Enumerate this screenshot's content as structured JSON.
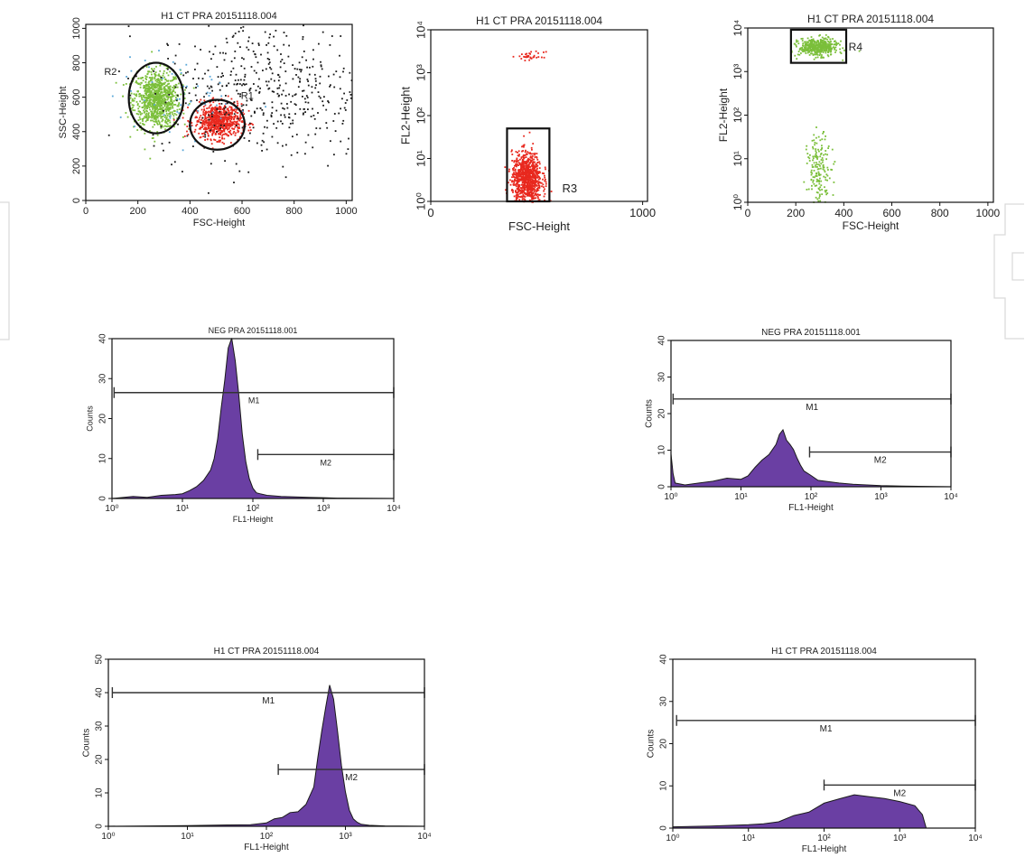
{
  "chart_data": [
    {
      "id": "dot-ssc-fsc",
      "type": "scatter",
      "title": "H1 CT PRA 20151118.004",
      "xlabel": "FSC-Height",
      "ylabel": "SSC-Height",
      "xlim": [
        0,
        1023
      ],
      "ylim": [
        0,
        1023
      ],
      "xticks": [
        "0",
        "200",
        "400",
        "600",
        "800",
        "1000"
      ],
      "yticks": [
        "0",
        "200",
        "400",
        "600",
        "800",
        "1000"
      ],
      "series": [
        {
          "color": "#7bbf3a",
          "cluster": {
            "cx": 270,
            "cy": 590,
            "sx": 45,
            "sy": 85,
            "n": 900
          }
        },
        {
          "color": "#e8281e",
          "cluster": {
            "cx": 505,
            "cy": 465,
            "sx": 45,
            "sy": 50,
            "n": 700
          }
        },
        {
          "color": "#1a1a1a",
          "cluster": {
            "cx": 700,
            "cy": 650,
            "sx": 220,
            "sy": 200,
            "n": 500
          }
        },
        {
          "color": "#5aa7d8",
          "cluster": {
            "cx": 350,
            "cy": 600,
            "sx": 120,
            "sy": 120,
            "n": 60
          }
        }
      ],
      "gates": [
        {
          "label": "R2",
          "type": "ellipse",
          "cx": 270,
          "cy": 595,
          "rx": 105,
          "ry": 205,
          "label_x": 95,
          "label_y": 730
        },
        {
          "label": "R1",
          "type": "ellipse",
          "cx": 505,
          "cy": 440,
          "rx": 105,
          "ry": 145,
          "label_x": 620,
          "label_y": 590
        }
      ]
    },
    {
      "id": "dot-fl2-fsc-red",
      "type": "scatter",
      "title": "H1 CT PRA 20151118.004",
      "xlabel": "FSC-Height",
      "ylabel": "FL2-Height",
      "xlim": [
        0,
        1023
      ],
      "ylog": [
        0,
        4
      ],
      "xticks": [
        "0",
        "1000"
      ],
      "yticks": [
        "10⁰",
        "10¹",
        "10²",
        "10³",
        "10⁴"
      ],
      "series": [
        {
          "color": "#e8281e",
          "cluster": {
            "cx": 450,
            "cy_log": 0.55,
            "sx": 35,
            "sy_log": 0.3,
            "n": 900
          }
        },
        {
          "color": "#e8281e",
          "cluster": {
            "cx": 470,
            "cy_log": 3.4,
            "sx": 30,
            "sy_log": 0.05,
            "n": 35
          }
        }
      ],
      "gates": [
        {
          "label": "R3",
          "type": "rect",
          "x0": 360,
          "x1": 560,
          "y0_log": 0,
          "y1_log": 1.7,
          "label_x": 620,
          "label_y_log": 0.28
        }
      ]
    },
    {
      "id": "dot-fl2-fsc-green",
      "type": "scatter",
      "title": "H1 CT PRA 20151118.004",
      "xlabel": "FSC-Height",
      "ylabel": "FL2-Height",
      "xlim": [
        0,
        1023
      ],
      "ylog": [
        0,
        4
      ],
      "xticks": [
        "0",
        "200",
        "400",
        "600",
        "800",
        "1000"
      ],
      "yticks": [
        "10⁰",
        "10¹",
        "10²",
        "10³",
        "10⁴"
      ],
      "series": [
        {
          "color": "#7bbf3a",
          "cluster": {
            "cx": 290,
            "cy_log": 3.58,
            "sx": 40,
            "sy_log": 0.1,
            "n": 450
          }
        },
        {
          "color": "#7bbf3a",
          "cluster": {
            "cx": 295,
            "cy_log": 0.75,
            "sx": 25,
            "sy_log": 0.4,
            "n": 170
          }
        }
      ],
      "gates": [
        {
          "label": "R4",
          "type": "rect",
          "x0": 180,
          "x1": 410,
          "y0_log": 3.2,
          "y1_log": 3.96,
          "label_x": 420,
          "label_y_log": 3.55
        }
      ]
    },
    {
      "id": "hist-neg-1",
      "type": "area",
      "title": "NEG PRA 20151118.001",
      "xlabel": "FL1-Height",
      "ylabel": "Counts",
      "xlog": [
        0,
        4
      ],
      "ylim": [
        0,
        40
      ],
      "xticks": [
        "10⁰",
        "10¹",
        "10²",
        "10³",
        "10⁴"
      ],
      "yticks": [
        "0",
        "10",
        "20",
        "30",
        "40"
      ],
      "x": [
        0,
        0.3,
        0.5,
        0.7,
        0.9,
        1.0,
        1.1,
        1.2,
        1.3,
        1.4,
        1.45,
        1.5,
        1.55,
        1.6,
        1.65,
        1.7,
        1.75,
        1.8,
        1.85,
        1.9,
        1.95,
        2.0,
        2.05,
        2.1,
        2.2,
        2.4,
        2.6,
        2.8,
        3.0,
        3.2,
        4.0
      ],
      "values": [
        0,
        0.5,
        0.3,
        0.8,
        1.0,
        1.2,
        2.0,
        3.0,
        4.5,
        7.0,
        10.0,
        15.0,
        22.0,
        30.0,
        38.0,
        40.0,
        35.0,
        26.0,
        16.0,
        9.0,
        5.0,
        3.0,
        2.0,
        1.2,
        0.8,
        0.5,
        0.4,
        0.3,
        0.2,
        0.1,
        0
      ],
      "markers": [
        {
          "label": "M1",
          "x0_log": 0.03,
          "x1_log": 4.0,
          "y": 26.5
        },
        {
          "label": "M2",
          "x0_log": 2.07,
          "x1_log": 4.0,
          "y": 11.0
        }
      ]
    },
    {
      "id": "hist-neg-2",
      "type": "area",
      "title": "NEG PRA 20151118.001",
      "xlabel": "FL1-Height",
      "ylabel": "Counts",
      "xlog": [
        0,
        4
      ],
      "ylim": [
        0,
        40
      ],
      "xticks": [
        "10⁰",
        "10¹",
        "10²",
        "10³",
        "10⁴"
      ],
      "yticks": [
        "0",
        "10",
        "20",
        "30",
        "40"
      ],
      "x": [
        0,
        0.03,
        0.06,
        0.2,
        0.4,
        0.6,
        0.8,
        1.0,
        1.1,
        1.2,
        1.3,
        1.4,
        1.5,
        1.55,
        1.6,
        1.65,
        1.7,
        1.75,
        1.8,
        1.85,
        1.9,
        2.0,
        2.1,
        2.2,
        2.4,
        2.6,
        2.8,
        3.0,
        3.3,
        4.0
      ],
      "values": [
        9.0,
        4.0,
        1.0,
        0.5,
        1.0,
        1.5,
        2.0,
        2.5,
        3.5,
        5.0,
        7.0,
        9.0,
        12.0,
        14.0,
        15.0,
        13.0,
        12.0,
        10.0,
        8.0,
        6.0,
        4.5,
        3.0,
        2.0,
        1.5,
        1.0,
        0.7,
        0.5,
        0.3,
        0.2,
        0
      ],
      "markers": [
        {
          "label": "M1",
          "x0_log": 0.03,
          "x1_log": 4.0,
          "y": 24.0
        },
        {
          "label": "M2",
          "x0_log": 1.98,
          "x1_log": 4.0,
          "y": 9.5
        }
      ]
    },
    {
      "id": "hist-h1-1",
      "type": "area",
      "title": "H1 CT PRA 20151118.004",
      "xlabel": "FL1-Height",
      "ylabel": "Counts",
      "xlog": [
        0,
        4
      ],
      "ylim": [
        0,
        50
      ],
      "xticks": [
        "10⁰",
        "10¹",
        "10²",
        "10³",
        "10⁴"
      ],
      "yticks": [
        "0",
        "10",
        "20",
        "30",
        "40",
        "50"
      ],
      "x": [
        0,
        1.0,
        1.5,
        1.8,
        2.0,
        2.1,
        2.2,
        2.3,
        2.4,
        2.5,
        2.6,
        2.65,
        2.7,
        2.75,
        2.8,
        2.85,
        2.9,
        2.95,
        3.0,
        3.05,
        3.1,
        3.15,
        3.2,
        3.3,
        3.5,
        4.0
      ],
      "values": [
        0,
        0.2,
        0.4,
        0.5,
        1.0,
        2.0,
        3.0,
        4.0,
        4.5,
        6.0,
        12.0,
        20.0,
        28.0,
        36.0,
        42.0,
        38.0,
        28.0,
        18.0,
        10.0,
        5.0,
        2.5,
        1.2,
        0.6,
        0.3,
        0.1,
        0
      ],
      "markers": [
        {
          "label": "M1",
          "x0_log": 0.05,
          "x1_log": 4.0,
          "y": 40.0
        },
        {
          "label": "M2",
          "x0_log": 2.15,
          "x1_log": 4.0,
          "y": 17.0
        }
      ]
    },
    {
      "id": "hist-h1-2",
      "type": "area",
      "title": "H1 CT PRA 20151118.004",
      "xlabel": "FL1-Height",
      "ylabel": "Counts",
      "xlog": [
        0,
        4
      ],
      "ylim": [
        0,
        40
      ],
      "xticks": [
        "10⁰",
        "10¹",
        "10²",
        "10³",
        "10⁴"
      ],
      "yticks": [
        "0",
        "10",
        "20",
        "30",
        "40"
      ],
      "x": [
        0,
        0.5,
        1.0,
        1.2,
        1.4,
        1.6,
        1.8,
        2.0,
        2.2,
        2.4,
        2.6,
        2.8,
        3.0,
        3.2,
        3.3,
        3.35,
        4.0
      ],
      "values": [
        0.3,
        0.5,
        0.8,
        1.0,
        1.5,
        2.5,
        4.0,
        5.5,
        7.0,
        7.5,
        7.0,
        7.5,
        6.5,
        5.5,
        3.0,
        0,
        0
      ],
      "markers": [
        {
          "label": "M1",
          "x0_log": 0.05,
          "x1_log": 4.0,
          "y": 25.5
        },
        {
          "label": "M2",
          "x0_log": 2.0,
          "x1_log": 4.0,
          "y": 10.2
        }
      ]
    }
  ]
}
